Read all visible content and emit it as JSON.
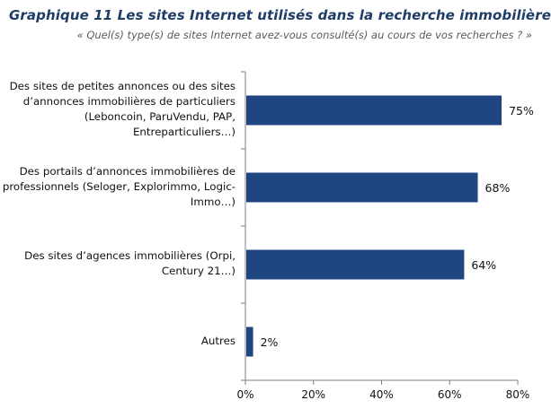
{
  "chart_data": {
    "type": "bar",
    "orientation": "horizontal",
    "title": "Graphique 11 Les sites Internet utilisés dans la recherche immobilière",
    "subtitle": "« Quel(s) type(s) de sites Internet avez-vous consulté(s) au cours de vos recherches ? »",
    "categories": [
      [
        "Des sites de petites annonces ou des sites",
        "d’annonces immobilières de particuliers",
        "(Leboncoin, ParuVendu, PAP,",
        "Entreparticuliers…)"
      ],
      [
        "Des portails d’annonces immobilières de",
        "professionnels (Seloger, Explorimmo, Logic-",
        "Immo…)"
      ],
      [
        "Des sites d’agences immobilières (Orpi,",
        "Century 21…)"
      ],
      [
        "Autres"
      ]
    ],
    "values": [
      75,
      68,
      64,
      2
    ],
    "value_labels": [
      "75%",
      "68%",
      "64%",
      "2%"
    ],
    "xlim": [
      0,
      80
    ],
    "xticks": [
      0,
      20,
      40,
      60,
      80
    ],
    "xtick_labels": [
      "0%",
      "20%",
      "40%",
      "60%",
      "80%"
    ],
    "bar_color": "#1f4680",
    "grid": false,
    "legend": "none"
  }
}
